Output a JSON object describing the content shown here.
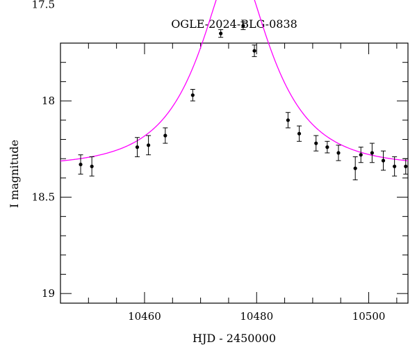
{
  "chart_data": {
    "type": "scatter",
    "title": "OGLE-2024-BLG-0838",
    "xlabel": "HJD - 2450000",
    "ylabel": "I magnitude",
    "xlim": [
      10445,
      10507
    ],
    "ylim": [
      19.05,
      17.7
    ],
    "y_inverted": true,
    "x_ticks": [
      10460,
      10480,
      10500
    ],
    "x_tick_labels": [
      "10460",
      "10480",
      "10500"
    ],
    "y_ticks": [
      17.5,
      18,
      18.5,
      19
    ],
    "y_tick_labels": [
      "17.5",
      "18",
      "18.5",
      "19"
    ],
    "grid": false,
    "series": [
      {
        "kind": "points_with_errorbars",
        "color": "#000000",
        "x": [
          10448.6,
          10450.6,
          10458.7,
          10460.7,
          10463.7,
          10468.6,
          10473.6,
          10477.6,
          10479.6,
          10485.6,
          10487.6,
          10490.6,
          10492.6,
          10494.6,
          10497.6,
          10498.6,
          10500.6,
          10502.6,
          10504.6,
          10506.6
        ],
        "y": [
          18.33,
          18.34,
          18.24,
          18.23,
          18.18,
          17.97,
          17.65,
          17.61,
          17.74,
          18.1,
          18.17,
          18.22,
          18.24,
          18.27,
          18.35,
          18.28,
          18.27,
          18.31,
          18.34,
          18.34
        ],
        "err": [
          0.05,
          0.05,
          0.05,
          0.05,
          0.04,
          0.03,
          0.02,
          0.02,
          0.03,
          0.04,
          0.04,
          0.04,
          0.03,
          0.04,
          0.06,
          0.04,
          0.05,
          0.05,
          0.05,
          0.04
        ]
      },
      {
        "kind": "model_curve",
        "color": "#ff00ff",
        "t0": 10476.2,
        "u0": 0.4,
        "tE": 12.0,
        "baseline": 18.34
      }
    ]
  }
}
